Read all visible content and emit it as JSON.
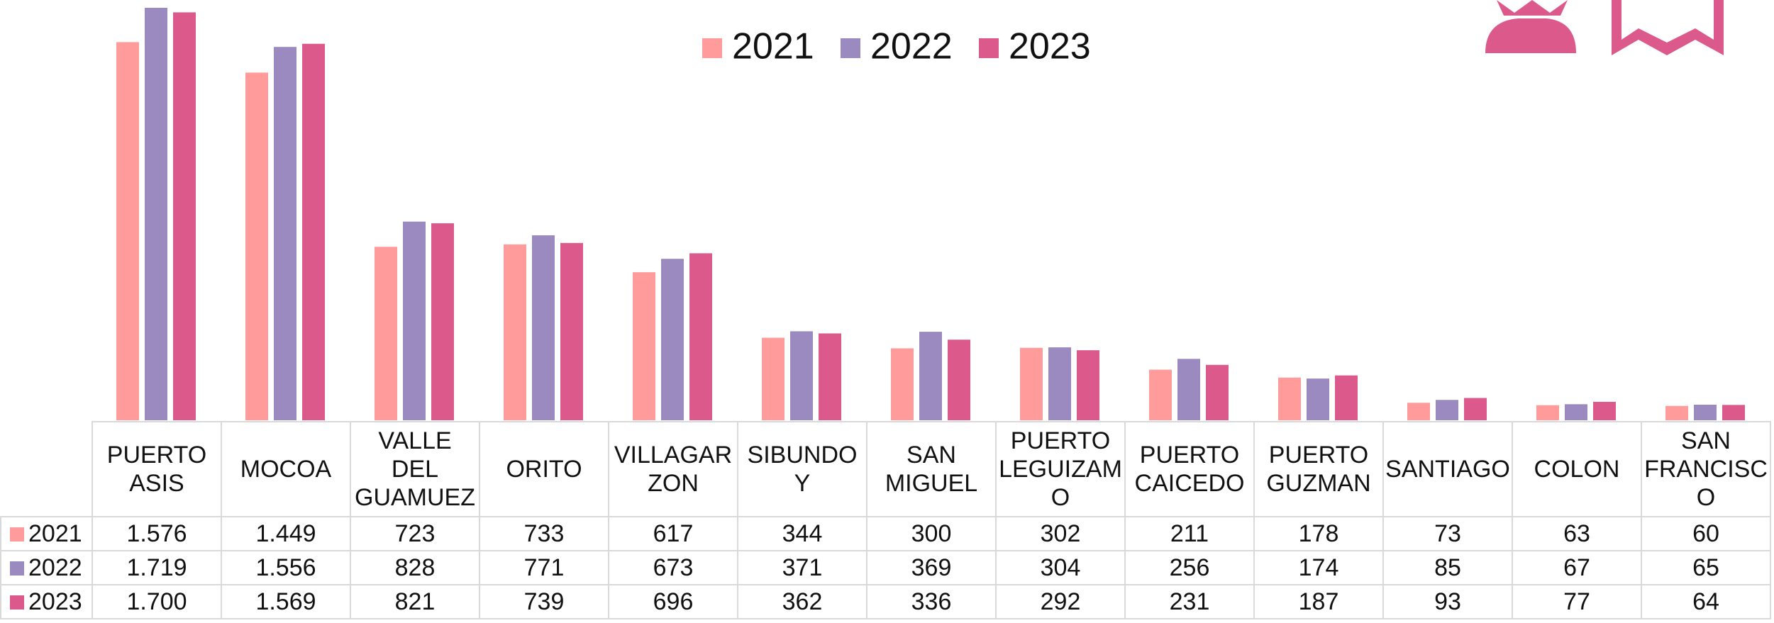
{
  "chart_data": {
    "type": "bar",
    "categories": [
      "PUERTO ASIS",
      "MOCOA",
      "VALLE DEL GUAMUEZ",
      "ORITO",
      "VILLAGARZON",
      "SIBUNDOY",
      "SAN MIGUEL",
      "PUERTO LEGUIZAMO",
      "PUERTO CAICEDO",
      "PUERTO GUZMAN",
      "SANTIAGO",
      "COLON",
      "SAN FRANCISCO"
    ],
    "series": [
      {
        "name": "2021",
        "color": "#ff9b9b",
        "values": [
          1576,
          1449,
          723,
          733,
          617,
          344,
          300,
          302,
          211,
          178,
          73,
          63,
          60
        ],
        "value_labels": [
          "1.576",
          "1.449",
          "723",
          "733",
          "617",
          "344",
          "300",
          "302",
          "211",
          "178",
          "73",
          "63",
          "60"
        ]
      },
      {
        "name": "2022",
        "color": "#9b8abf",
        "values": [
          1719,
          1556,
          828,
          771,
          673,
          371,
          369,
          304,
          256,
          174,
          85,
          67,
          65
        ],
        "value_labels": [
          "1.719",
          "1.556",
          "828",
          "771",
          "673",
          "371",
          "369",
          "304",
          "256",
          "174",
          "85",
          "67",
          "65"
        ]
      },
      {
        "name": "2023",
        "color": "#dc5a8b",
        "values": [
          1700,
          1569,
          821,
          739,
          696,
          362,
          336,
          292,
          231,
          187,
          93,
          77,
          64
        ],
        "value_labels": [
          "1.700",
          "1.569",
          "821",
          "739",
          "696",
          "362",
          "336",
          "292",
          "231",
          "187",
          "93",
          "77",
          "64"
        ]
      }
    ],
    "legend": "top"
  }
}
